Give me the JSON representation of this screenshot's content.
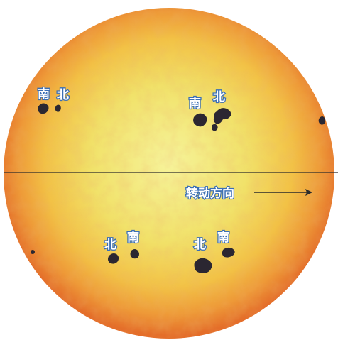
{
  "colors": {
    "sun_center": "#f4f08a",
    "sun_mid": "#f2c948",
    "sun_edge": "#e8782c",
    "sunspot": "#2a2630",
    "label_fill": "#ffffff",
    "label_stroke": "#3b6fb5",
    "equator": "#2b2b2b"
  },
  "labels": {
    "south": "南",
    "north": "北",
    "rotation": "转动方向"
  },
  "sunspot_groups": [
    {
      "id": "upper-left",
      "left_label": "南",
      "right_label": "北"
    },
    {
      "id": "upper-right",
      "left_label": "南",
      "right_label": "北"
    },
    {
      "id": "lower-left",
      "left_label": "北",
      "right_label": "南"
    },
    {
      "id": "lower-right",
      "left_label": "北",
      "right_label": "南"
    }
  ]
}
